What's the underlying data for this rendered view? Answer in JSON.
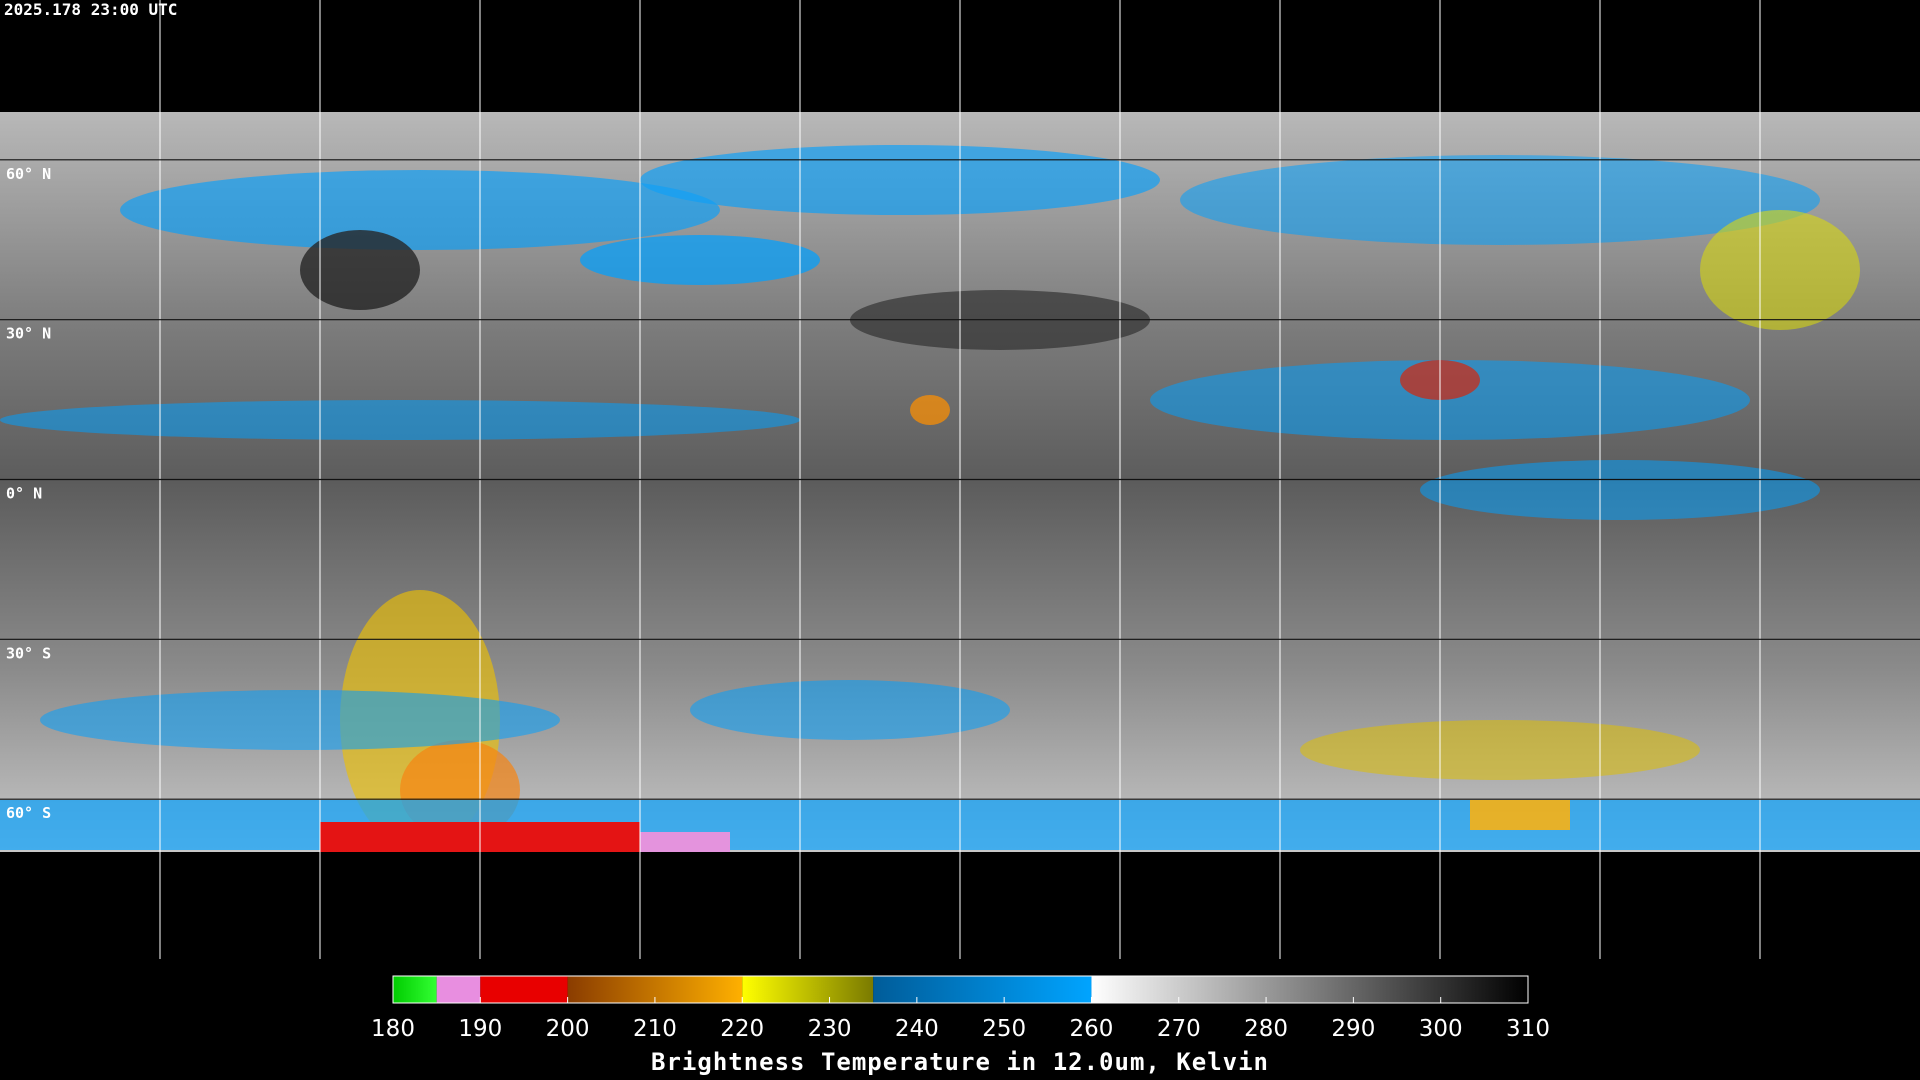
{
  "timestamp": "2025.178 23:00 UTC",
  "map": {
    "lat_range": [
      90,
      -90
    ],
    "lon_range": [
      -180,
      180
    ],
    "lat_lines": [
      {
        "value": 60,
        "label": "60° N"
      },
      {
        "value": 30,
        "label": "30° N"
      },
      {
        "value": 0,
        "label": "0° N"
      },
      {
        "value": -30,
        "label": "30° S"
      },
      {
        "value": -60,
        "label": "60° S"
      }
    ],
    "lon_lines": [
      -150,
      -120,
      -90,
      -60,
      -30,
      0,
      30,
      60,
      90,
      120,
      150
    ]
  },
  "colorbar": {
    "title": "Brightness Temperature in 12.0um, Kelvin",
    "range": [
      180,
      310
    ],
    "ticks": [
      180,
      190,
      200,
      210,
      220,
      230,
      240,
      250,
      260,
      270,
      280,
      290,
      300,
      310
    ],
    "segments": [
      {
        "from": 180,
        "to": 185,
        "colors": [
          "#00cc00",
          "#33ff33"
        ]
      },
      {
        "from": 185,
        "to": 190,
        "colors": [
          "#e88ee0",
          "#e88ee0"
        ]
      },
      {
        "from": 190,
        "to": 200,
        "colors": [
          "#e80000",
          "#e80000"
        ]
      },
      {
        "from": 200,
        "to": 220,
        "colors": [
          "#8a3c00",
          "#ffb000"
        ]
      },
      {
        "from": 220,
        "to": 235,
        "colors": [
          "#ffff00",
          "#7a7a00"
        ]
      },
      {
        "from": 235,
        "to": 260,
        "colors": [
          "#005c99",
          "#00a4ff"
        ]
      },
      {
        "from": 260,
        "to": 310,
        "colors": [
          "#ffffff",
          "#000000"
        ]
      }
    ]
  }
}
